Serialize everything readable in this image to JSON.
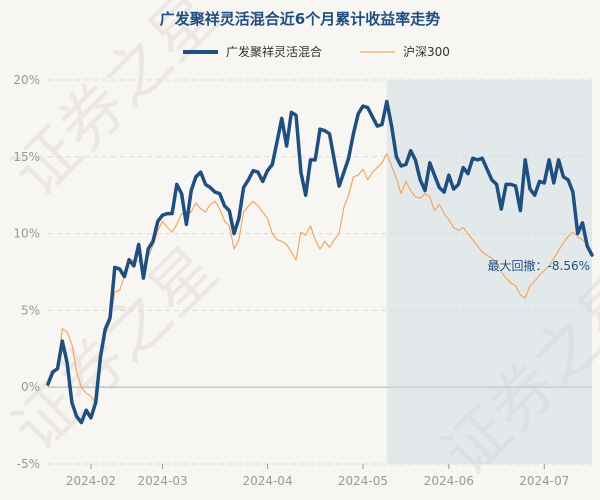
{
  "chart_data": {
    "type": "line",
    "title": "广发聚祥灵活混合近6个月累计收益率走势",
    "ylim": [
      -5,
      20
    ],
    "yticks": [
      -5,
      0,
      5,
      10,
      15,
      20
    ],
    "ytick_labels": [
      "-5%",
      "0%",
      "5%",
      "10%",
      "15%",
      "20%"
    ],
    "xticks": [
      {
        "label": "2024-02",
        "at": 9
      },
      {
        "label": "2024-03",
        "at": 24
      },
      {
        "label": "2024-04",
        "at": 46
      },
      {
        "label": "2024-05",
        "at": 66
      },
      {
        "label": "2024-06",
        "at": 84
      },
      {
        "label": "2024-07",
        "at": 104
      }
    ],
    "series": [
      {
        "name": "广发聚祥灵活混合",
        "color": "#1f4f80",
        "values": [
          0.2,
          1,
          1.2,
          3,
          1.6,
          -1,
          -1.9,
          -2.3,
          -1.5,
          -2,
          -1,
          2,
          3.8,
          4.5,
          7.8,
          7.7,
          7.2,
          8.3,
          7.9,
          9.3,
          7.1,
          9,
          9.5,
          10.8,
          11.2,
          11.3,
          11.3,
          13.2,
          12.6,
          10.6,
          12.8,
          13.7,
          14,
          13.2,
          13,
          12.7,
          12.6,
          11.8,
          11.5,
          10,
          11,
          13,
          13.5,
          14.1,
          14,
          13.4,
          14.1,
          14.5,
          16,
          17.5,
          15.7,
          17.9,
          17.7,
          14,
          12.5,
          14.8,
          14.8,
          16.8,
          16.7,
          16.5,
          14.8,
          13.1,
          14,
          14.9,
          16.5,
          17.8,
          18.3,
          18.2,
          17.6,
          17,
          17.1,
          18.6,
          17,
          15,
          14.4,
          14.5,
          15.4,
          14.8,
          13.5,
          12.8,
          14.6,
          13.8,
          13,
          12.7,
          13.8,
          12.9,
          13.2,
          14.3,
          13.9,
          14.9,
          14.8,
          14.9,
          14.2,
          13.5,
          13.2,
          11.6,
          13.2,
          13.2,
          13.1,
          11.5,
          14.8,
          12.9,
          12.5,
          13.4,
          13.3,
          14.8,
          13.3,
          14.8,
          13.7,
          13.5,
          12.7,
          10,
          10.7,
          9.2,
          8.6
        ]
      },
      {
        "name": "沪深300",
        "color": "#f0a860",
        "values": [
          0,
          0.8,
          1.2,
          3.8,
          3.6,
          2.8,
          1,
          0,
          -0.4,
          -0.6,
          -1,
          1.5,
          3.5,
          4.2,
          6.2,
          6.3,
          7.2,
          8.2,
          8.3,
          8.2,
          7.8,
          8.5,
          9.2,
          10.2,
          10.8,
          10.4,
          10.1,
          10.6,
          11.3,
          11.2,
          11.4,
          12,
          11.6,
          11.4,
          11.9,
          12.1,
          11.6,
          10.8,
          10.5,
          9,
          9.6,
          11.4,
          11.8,
          12.1,
          11.8,
          11.4,
          11,
          10,
          9.6,
          9.5,
          9.3,
          8.8,
          8.3,
          10.1,
          9.9,
          10.5,
          9.6,
          9,
          9.5,
          9.1,
          9.6,
          10,
          11.7,
          12.5,
          13.7,
          13.8,
          14.2,
          13.5,
          14,
          14.3,
          14.6,
          15.2,
          14.4,
          13.6,
          12.6,
          13.4,
          12.8,
          12.4,
          12.3,
          12.6,
          12.4,
          11.5,
          11.9,
          11.3,
          10.9,
          10.4,
          10.2,
          10.4,
          10,
          9.6,
          9.2,
          8.8,
          8.6,
          8.4,
          8.1,
          7.5,
          7.1,
          6.8,
          6.6,
          6,
          5.8,
          6.6,
          6.9,
          7.3,
          7.6,
          7.9,
          8.4,
          8.9,
          9.4,
          9.8,
          10.1,
          9.8,
          9.6,
          9.3
        ]
      }
    ],
    "max_drawdown_label": "最大回撤：-8.56%",
    "drawdown_start_index": 71,
    "watermark_text": "证券之星"
  }
}
